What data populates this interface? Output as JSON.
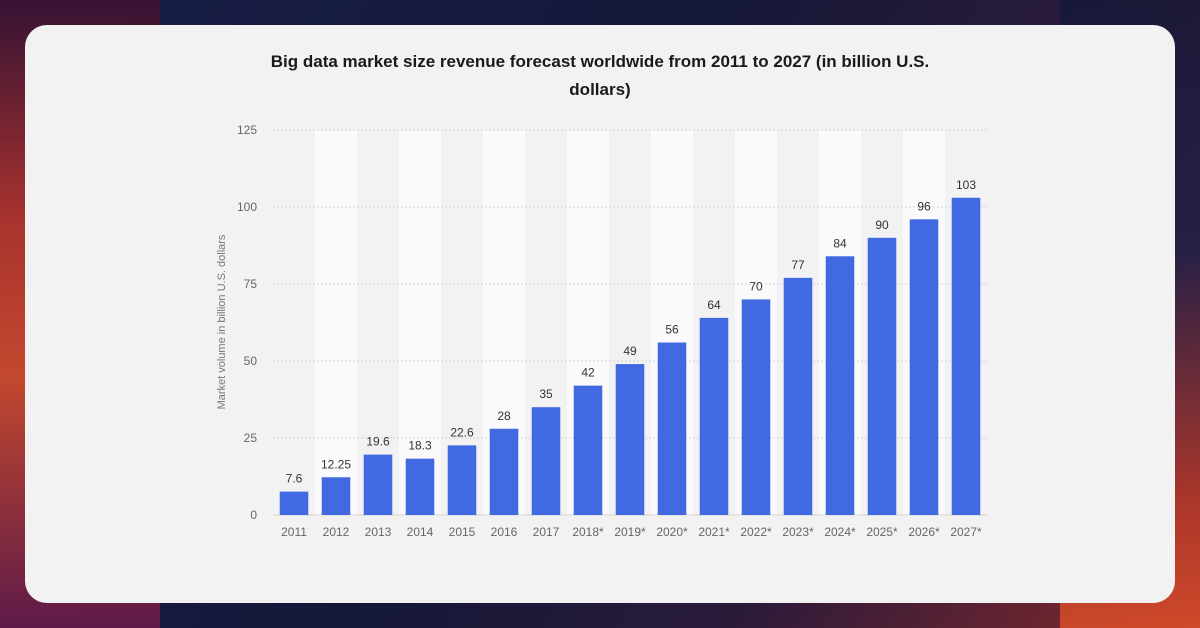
{
  "chart_data": {
    "type": "bar",
    "title_line1": "Big data market size revenue forecast worldwide from 2011 to 2027 (in billion U.S.",
    "title_line2": "dollars)",
    "ylabel": "Market volume in billion U.S. dollars",
    "xlabel": "",
    "ylim": [
      0,
      125
    ],
    "yticks": [
      0,
      25,
      50,
      75,
      100,
      125
    ],
    "grid": true,
    "categories": [
      "2011",
      "2012",
      "2013",
      "2014",
      "2015",
      "2016",
      "2017",
      "2018*",
      "2019*",
      "2020*",
      "2021*",
      "2022*",
      "2023*",
      "2024*",
      "2025*",
      "2026*",
      "2027*"
    ],
    "values": [
      7.6,
      12.25,
      19.6,
      18.3,
      22.6,
      28,
      35,
      42,
      49,
      56,
      64,
      70,
      77,
      84,
      90,
      96,
      103
    ],
    "value_labels": [
      "7.6",
      "12.25",
      "19.6",
      "18.3",
      "22.6",
      "28",
      "35",
      "42",
      "49",
      "56",
      "64",
      "70",
      "77",
      "84",
      "90",
      "96",
      "103"
    ],
    "bar_color": "#4169e1"
  }
}
